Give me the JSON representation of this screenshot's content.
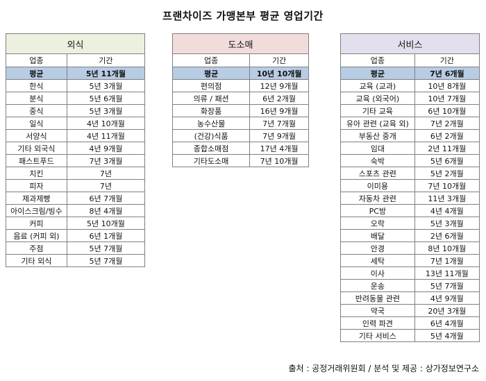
{
  "title": "프랜차이즈 가맹본부 평균 영업기간",
  "source": "출처 : 공정거래위원회 / 분석 및 제공 : 상가정보연구소",
  "colors": {
    "dining": "#ebf1de",
    "retail": "#f2dcdb",
    "service": "#e4dfec",
    "average": "#b8cce4"
  },
  "tables": [
    {
      "name": "외식",
      "col_industry": "업종",
      "col_period": "기간",
      "rows": [
        [
          "평균",
          "5년 11개월"
        ],
        [
          "한식",
          "5년 3개월"
        ],
        [
          "분식",
          "5년 6개월"
        ],
        [
          "중식",
          "5년 3개월"
        ],
        [
          "일식",
          "4년 10개월"
        ],
        [
          "서양식",
          "4년 11개월"
        ],
        [
          "기타 외국식",
          "4년 9개월"
        ],
        [
          "패스트푸드",
          "7년 3개월"
        ],
        [
          "치킨",
          "7년"
        ],
        [
          "피자",
          "7년"
        ],
        [
          "제과제빵",
          "6년 7개월"
        ],
        [
          "아이스크림/빙수",
          "8년 4개월"
        ],
        [
          "커피",
          "5년 10개월"
        ],
        [
          "음료 (커피 외)",
          "6년 1개월"
        ],
        [
          "주점",
          "5년 7개월"
        ],
        [
          "기타 외식",
          "5년 7개월"
        ]
      ]
    },
    {
      "name": "도소매",
      "col_industry": "업종",
      "col_period": "기간",
      "rows": [
        [
          "평균",
          "10년 10개월"
        ],
        [
          "편의점",
          "12년 9개월"
        ],
        [
          "의류 / 패션",
          "6년 2개월"
        ],
        [
          "화장품",
          "16년 9개월"
        ],
        [
          "농수산물",
          "7년 7개월"
        ],
        [
          "(건강)식품",
          "7년 9개월"
        ],
        [
          "종합소매점",
          "17년 4개월"
        ],
        [
          "기타도소매",
          "7년 10개월"
        ]
      ]
    },
    {
      "name": "서비스",
      "col_industry": "업종",
      "col_period": "기간",
      "rows": [
        [
          "평균",
          "7년 6개월"
        ],
        [
          "교육 (교과)",
          "10년 8개월"
        ],
        [
          "교육 (외국어)",
          "10년 7개월"
        ],
        [
          "기타 교육",
          "6년 10개월"
        ],
        [
          "유아 관련 (교육 외)",
          "7년 2개월"
        ],
        [
          "부동산 중개",
          "6년 2개월"
        ],
        [
          "임대",
          "2년 11개월"
        ],
        [
          "숙박",
          "5년 6개월"
        ],
        [
          "스포츠 관련",
          "5년 2개월"
        ],
        [
          "이미용",
          "7년 10개월"
        ],
        [
          "자동차 관련",
          "11년 3개월"
        ],
        [
          "PC방",
          "4년 4개월"
        ],
        [
          "오락",
          "5년 3개월"
        ],
        [
          "배달",
          "2년 6개월"
        ],
        [
          "안경",
          "8년 10개월"
        ],
        [
          "세탁",
          "7년 1개월"
        ],
        [
          "이사",
          "13년 11개월"
        ],
        [
          "운송",
          "5년 7개월"
        ],
        [
          "반려동물 관련",
          "4년 9개월"
        ],
        [
          "약국",
          "20년 3개월"
        ],
        [
          "인력 파견",
          "6년 4개월"
        ],
        [
          "기타 서비스",
          "5년 4개월"
        ]
      ]
    }
  ]
}
